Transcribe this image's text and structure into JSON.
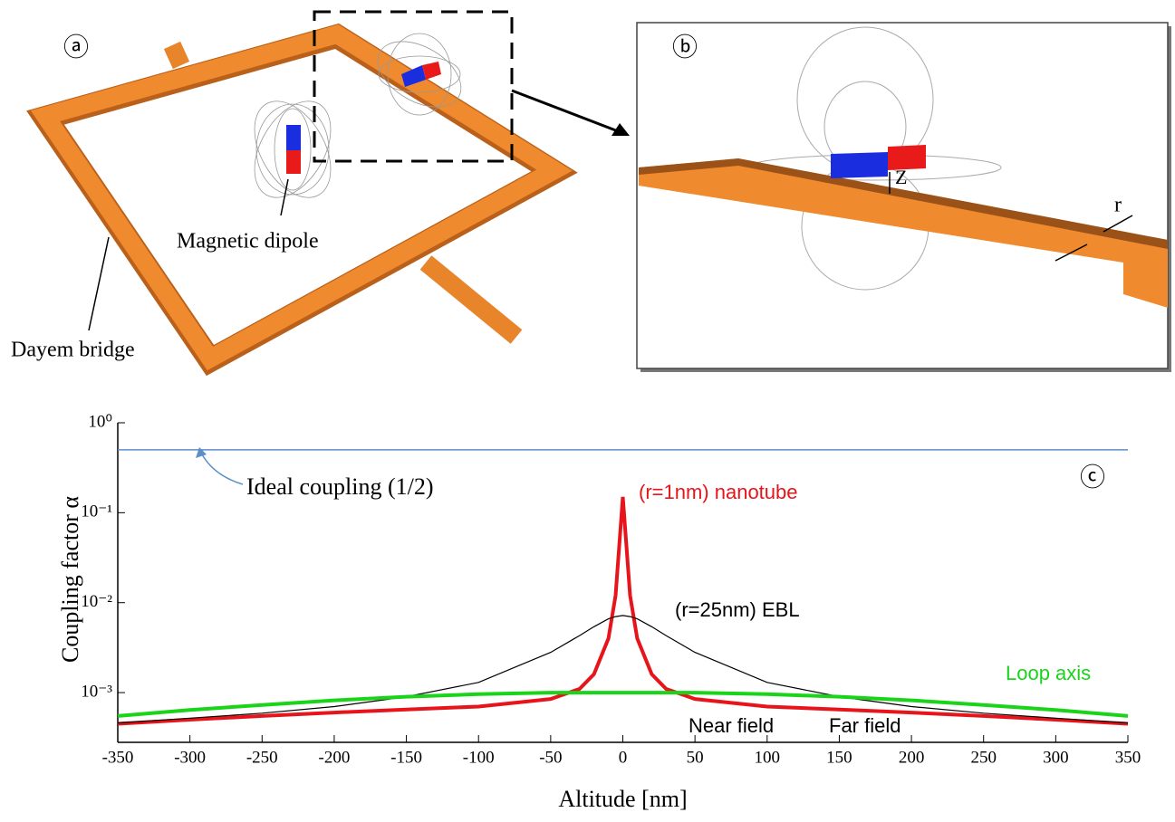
{
  "diagram": {
    "panel_a": "ⓐ",
    "panel_b": "ⓑ",
    "dipole_label": "Magnetic dipole",
    "bridge_label": "Dayem bridge",
    "z_label": "Z",
    "r_label": "r"
  },
  "chart_data": {
    "type": "line",
    "panel": "ⓒ",
    "x_label": "Altitude [nm]",
    "y_label": "Coupling factor α",
    "log_y": true,
    "x": [
      -350,
      -300,
      -250,
      -200,
      -150,
      -100,
      -50,
      -30,
      -20,
      -10,
      -5,
      0,
      5,
      10,
      20,
      30,
      50,
      100,
      150,
      200,
      250,
      300,
      350
    ],
    "series": [
      {
        "name": "Ideal coupling (1/2)",
        "color": "#5b8fc7",
        "values": [
          0.5,
          0.5,
          0.5,
          0.5,
          0.5,
          0.5,
          0.5,
          0.5,
          0.5,
          0.5,
          0.5,
          0.5,
          0.5,
          0.5,
          0.5,
          0.5,
          0.5,
          0.5,
          0.5,
          0.5,
          0.5,
          0.5,
          0.5
        ]
      },
      {
        "name": "(r=1nm) nanotube",
        "color": "#e8141c",
        "values": [
          0.00045,
          0.0005,
          0.00055,
          0.0006,
          0.00065,
          0.0007,
          0.00085,
          0.0011,
          0.0016,
          0.004,
          0.012,
          0.15,
          0.012,
          0.004,
          0.0016,
          0.0011,
          0.00085,
          0.0007,
          0.00065,
          0.0006,
          0.00055,
          0.0005,
          0.00045
        ]
      },
      {
        "name": "(r=25nm) EBL",
        "color": "#000000",
        "values": [
          0.00046,
          0.00052,
          0.00059,
          0.0007,
          0.0009,
          0.0013,
          0.0028,
          0.0043,
          0.0054,
          0.0066,
          0.007,
          0.0072,
          0.007,
          0.0066,
          0.0054,
          0.0043,
          0.0028,
          0.0013,
          0.0009,
          0.0007,
          0.00059,
          0.00052,
          0.00046
        ]
      },
      {
        "name": "Loop axis",
        "color": "#19d419",
        "values": [
          0.00055,
          0.00064,
          0.00073,
          0.00082,
          0.0009,
          0.00096,
          0.001,
          0.001,
          0.001,
          0.001,
          0.001,
          0.001,
          0.001,
          0.001,
          0.001,
          0.001,
          0.001,
          0.00096,
          0.0009,
          0.00082,
          0.00073,
          0.00064,
          0.00055
        ]
      }
    ],
    "annotations": [
      "Near field",
      "Far field"
    ],
    "xlim": [
      -350,
      350
    ],
    "xticks": [
      -350,
      -300,
      -250,
      -200,
      -150,
      -100,
      -50,
      0,
      50,
      100,
      150,
      200,
      250,
      300,
      350
    ],
    "ylim": [
      0.00028,
      1
    ],
    "yticks": [
      {
        "value": 1,
        "label": "10⁰"
      },
      {
        "value": 0.1,
        "label": "10⁻¹"
      },
      {
        "value": 0.01,
        "label": "10⁻²"
      },
      {
        "value": 0.001,
        "label": "10⁻³"
      }
    ]
  }
}
